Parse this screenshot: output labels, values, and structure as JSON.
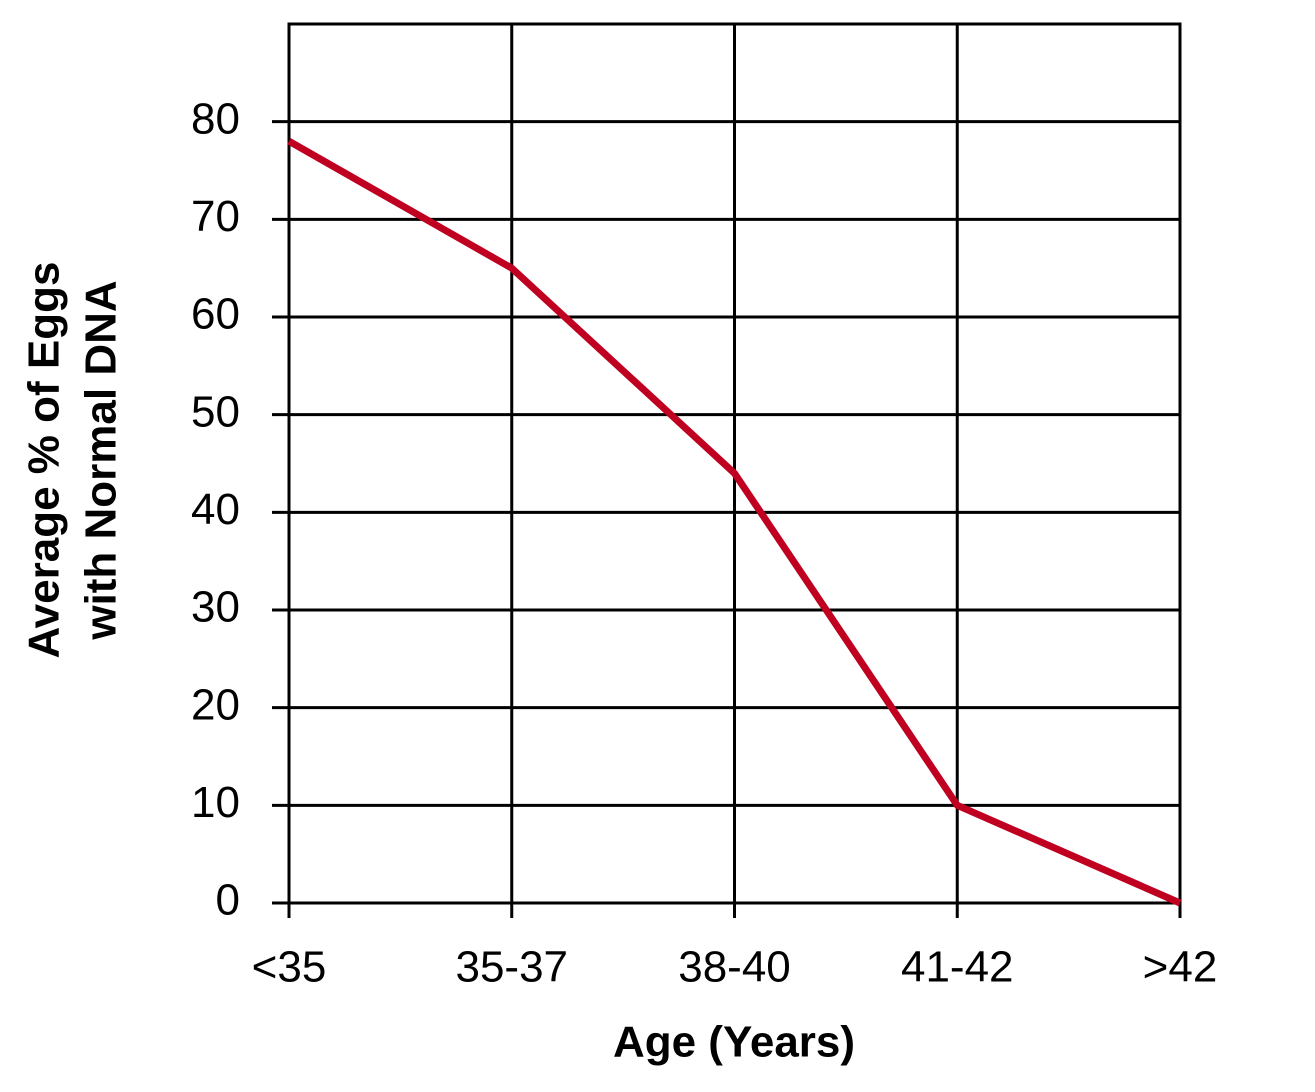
{
  "chart_data": {
    "type": "line",
    "x_label": "Age (Years)",
    "y_label": [
      "Average % of Eggs",
      "with Normal DNA"
    ],
    "categories": [
      "<35",
      "35-37",
      "38-40",
      "41-42",
      ">42"
    ],
    "series": [
      {
        "color": "#c00020",
        "values": [
          78,
          65,
          44,
          10,
          0
        ]
      }
    ],
    "ylim": [
      0,
      90
    ],
    "yticks": [
      0,
      10,
      20,
      30,
      40,
      50,
      60,
      70,
      80
    ],
    "grid": true
  }
}
